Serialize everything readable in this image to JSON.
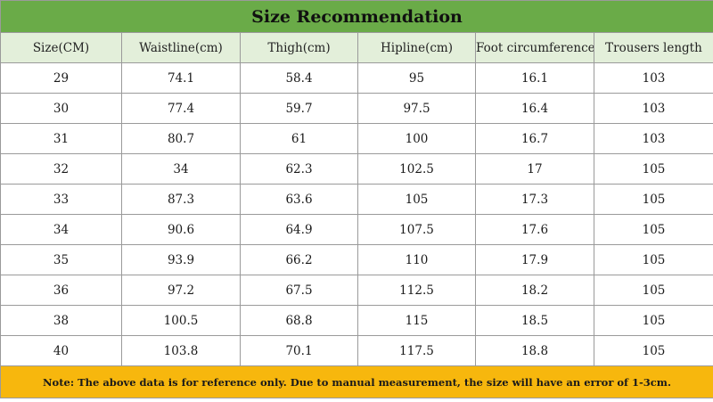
{
  "title": "Size Recommendation",
  "columns": [
    "Size(CM)",
    "Waistline(cm)",
    "Thigh(cm)",
    "Hipline(cm)",
    "Foot circumference",
    "Trousers length"
  ],
  "rows": [
    [
      "29",
      "74.1",
      "58.4",
      "95",
      "16.1",
      "103"
    ],
    [
      "30",
      "77.4",
      "59.7",
      "97.5",
      "16.4",
      "103"
    ],
    [
      "31",
      "80.7",
      "61",
      "100",
      "16.7",
      "103"
    ],
    [
      "32",
      "34",
      "62.3",
      "102.5",
      "17",
      "105"
    ],
    [
      "33",
      "87.3",
      "63.6",
      "105",
      "17.3",
      "105"
    ],
    [
      "34",
      "90.6",
      "64.9",
      "107.5",
      "17.6",
      "105"
    ],
    [
      "35",
      "93.9",
      "66.2",
      "110",
      "17.9",
      "105"
    ],
    [
      "36",
      "97.2",
      "67.5",
      "112.5",
      "18.2",
      "105"
    ],
    [
      "38",
      "100.5",
      "68.8",
      "115",
      "18.5",
      "105"
    ],
    [
      "40",
      "103.8",
      "70.1",
      "117.5",
      "18.8",
      "105"
    ]
  ],
  "note": "Note: The above data is for reference only. Due to manual measurement, the size will have an error of 1-3cm.",
  "colors": {
    "title_bg": "#6aab48",
    "header_bg": "#e3efda",
    "note_bg": "#f7b70d",
    "border": "#9a9a9a"
  }
}
